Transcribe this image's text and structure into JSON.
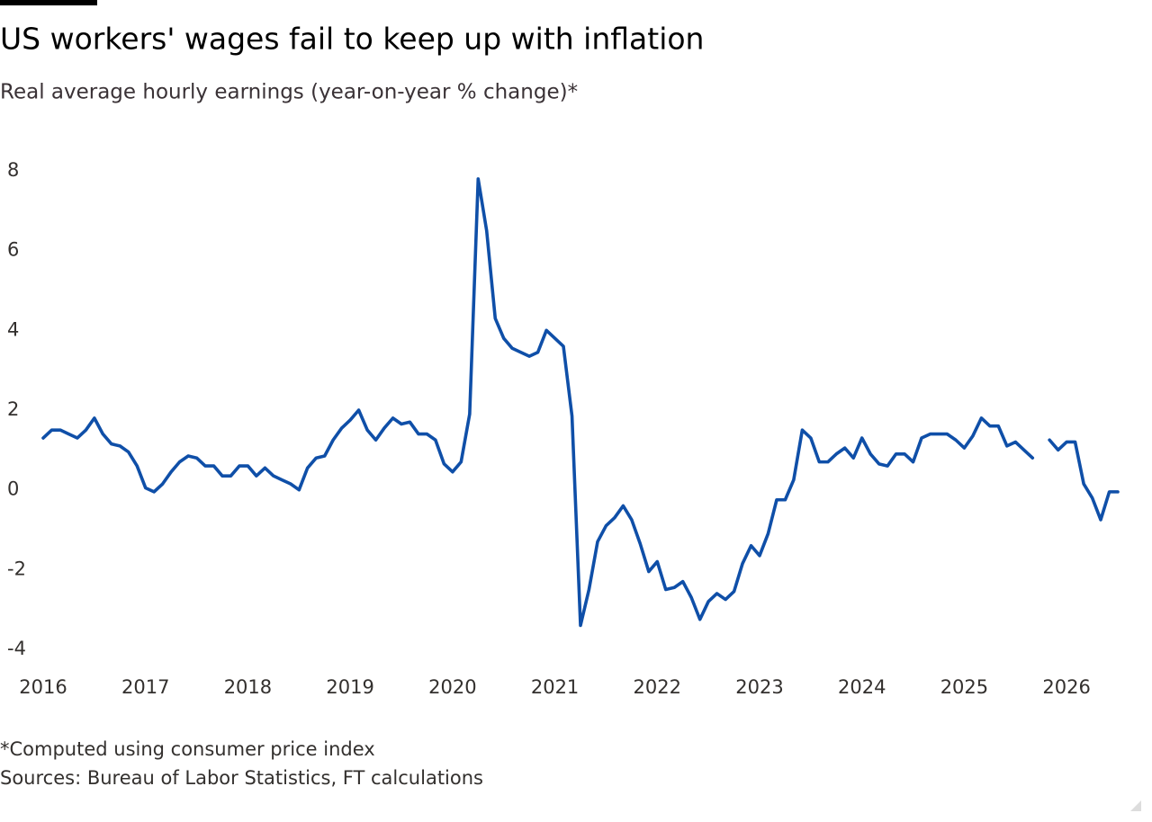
{
  "chart_data": {
    "type": "line",
    "title": "US workers' wages fail to keep up with inflation",
    "subtitle": "Real average hourly earnings (year-on-year % change)*",
    "notes": [
      "*Computed using consumer price index",
      "Sources: Bureau of Labor Statistics, FT calculations"
    ],
    "color": "#0f4fa8",
    "x": [
      2016,
      2016.083,
      2016.167,
      2016.25,
      2016.333,
      2016.417,
      2016.5,
      2016.583,
      2016.667,
      2016.75,
      2016.833,
      2016.917,
      2017,
      2017.083,
      2017.167,
      2017.25,
      2017.333,
      2017.417,
      2017.5,
      2017.583,
      2017.667,
      2017.75,
      2017.833,
      2017.917,
      2018,
      2018.083,
      2018.167,
      2018.25,
      2018.333,
      2018.417,
      2018.5,
      2018.583,
      2018.667,
      2018.75,
      2018.833,
      2018.917,
      2019,
      2019.083,
      2019.167,
      2019.25,
      2019.333,
      2019.417,
      2019.5,
      2019.583,
      2019.667,
      2019.75,
      2019.833,
      2019.917,
      2020,
      2020.083,
      2020.167,
      2020.25,
      2020.333,
      2020.417,
      2020.5,
      2020.583,
      2020.667,
      2020.75,
      2020.833,
      2020.917,
      2021,
      2021.083,
      2021.167,
      2021.25,
      2021.333,
      2021.417,
      2021.5,
      2021.583,
      2021.667,
      2021.75,
      2021.833,
      2021.917,
      2022,
      2022.083,
      2022.167,
      2022.25,
      2022.333,
      2022.417,
      2022.5,
      2022.583,
      2022.667,
      2022.75,
      2022.833,
      2022.917,
      2023,
      2023.083,
      2023.167,
      2023.25,
      2023.333,
      2023.417,
      2023.5,
      2023.583,
      2023.667,
      2023.75,
      2023.833,
      2023.917,
      2024,
      2024.083,
      2024.167,
      2024.25,
      2024.333,
      2024.417,
      2024.5,
      2024.583,
      2024.667,
      2024.75,
      2024.833,
      2024.917,
      2025,
      2025.083,
      2025.167,
      2025.25,
      2025.333,
      2025.417,
      2025.5,
      2025.583,
      2025.667,
      2025.75,
      2025.833,
      2025.917,
      2026,
      2026.083,
      2026.167,
      2026.25,
      2026.333,
      2026.417,
      2026.5
    ],
    "values": [
      1.3,
      1.5,
      1.5,
      1.4,
      1.3,
      1.5,
      1.8,
      1.4,
      1.15,
      1.1,
      0.95,
      0.6,
      0.05,
      -0.05,
      0.15,
      0.45,
      0.7,
      0.85,
      0.8,
      0.6,
      0.6,
      0.35,
      0.35,
      0.6,
      0.6,
      0.35,
      0.55,
      0.35,
      0.25,
      0.15,
      0.0,
      0.55,
      0.8,
      0.85,
      1.25,
      1.55,
      1.75,
      2.0,
      1.5,
      1.25,
      1.55,
      1.8,
      1.65,
      1.7,
      1.4,
      1.4,
      1.25,
      0.65,
      0.45,
      0.7,
      1.9,
      7.8,
      6.5,
      4.3,
      3.8,
      3.55,
      3.45,
      3.35,
      3.45,
      4.0,
      3.8,
      3.6,
      1.85,
      -3.4,
      -2.5,
      -1.3,
      -0.9,
      -0.7,
      -0.4,
      -0.75,
      -1.35,
      -2.05,
      -1.8,
      -2.5,
      -2.45,
      -2.3,
      -2.7,
      -3.25,
      -2.8,
      -2.6,
      -2.75,
      -2.55,
      -1.85,
      -1.4,
      -1.65,
      -1.1,
      -0.25,
      -0.25,
      0.25,
      1.5,
      1.3,
      0.7,
      0.7,
      0.9,
      1.05,
      0.8,
      1.3,
      0.9,
      0.65,
      0.6,
      0.9,
      0.9,
      0.7,
      1.3,
      1.4,
      1.4,
      1.4,
      1.25,
      1.05,
      1.35,
      1.8,
      1.6,
      1.6,
      1.1,
      1.2,
      1.0,
      0.8,
      null,
      1.25,
      1.0,
      1.2,
      1.2,
      0.15,
      -0.2,
      -0.75,
      -0.05,
      -0.05
    ],
    "xlim": [
      2016,
      2026.5
    ],
    "xticks": [
      2016,
      2017,
      2018,
      2019,
      2020,
      2021,
      2022,
      2023,
      2024,
      2025,
      2026
    ],
    "ylim": [
      -4,
      8
    ],
    "yticks": [
      -4,
      -2,
      0,
      2,
      4,
      6,
      8
    ],
    "grid": false
  }
}
